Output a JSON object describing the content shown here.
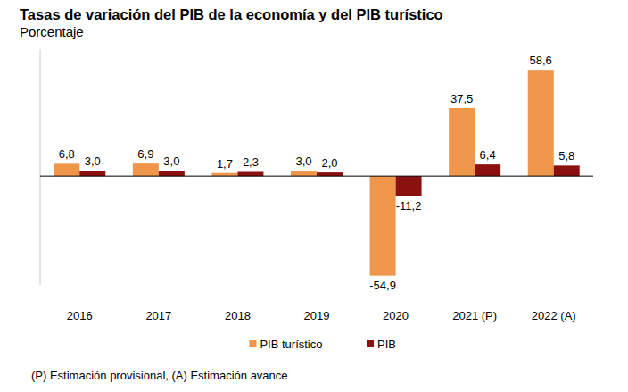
{
  "chart_data": {
    "type": "bar",
    "title": "Tasas de variación del PIB de la economía y del PIB turístico",
    "subtitle": "Porcentaje",
    "note": "(P) Estimación provisional, (A) Estimación avance",
    "categories": [
      "2016",
      "2017",
      "2018",
      "2019",
      "2020",
      "2021 (P)",
      "2022 (A)"
    ],
    "series": [
      {
        "name": "PIB turístico",
        "color": "#f0964b",
        "values": [
          6.8,
          6.9,
          1.7,
          3.0,
          -54.9,
          37.5,
          58.6
        ],
        "value_labels": [
          "6,8",
          "6,9",
          "1,7",
          "3,0",
          "-54,9",
          "37,5",
          "58,6"
        ]
      },
      {
        "name": "PIB",
        "color": "#8b1010",
        "values": [
          3.0,
          3.0,
          2.3,
          2.0,
          -11.2,
          6.4,
          5.8
        ],
        "value_labels": [
          "3,0",
          "3,0",
          "2,3",
          "2,0",
          "-11,2",
          "6,4",
          "5,8"
        ]
      }
    ],
    "ylim": [
      -60,
      70
    ],
    "yticks": [
      0
    ],
    "tick_labels": "x",
    "data_labels": true,
    "legend": "bottom",
    "grid": false
  }
}
